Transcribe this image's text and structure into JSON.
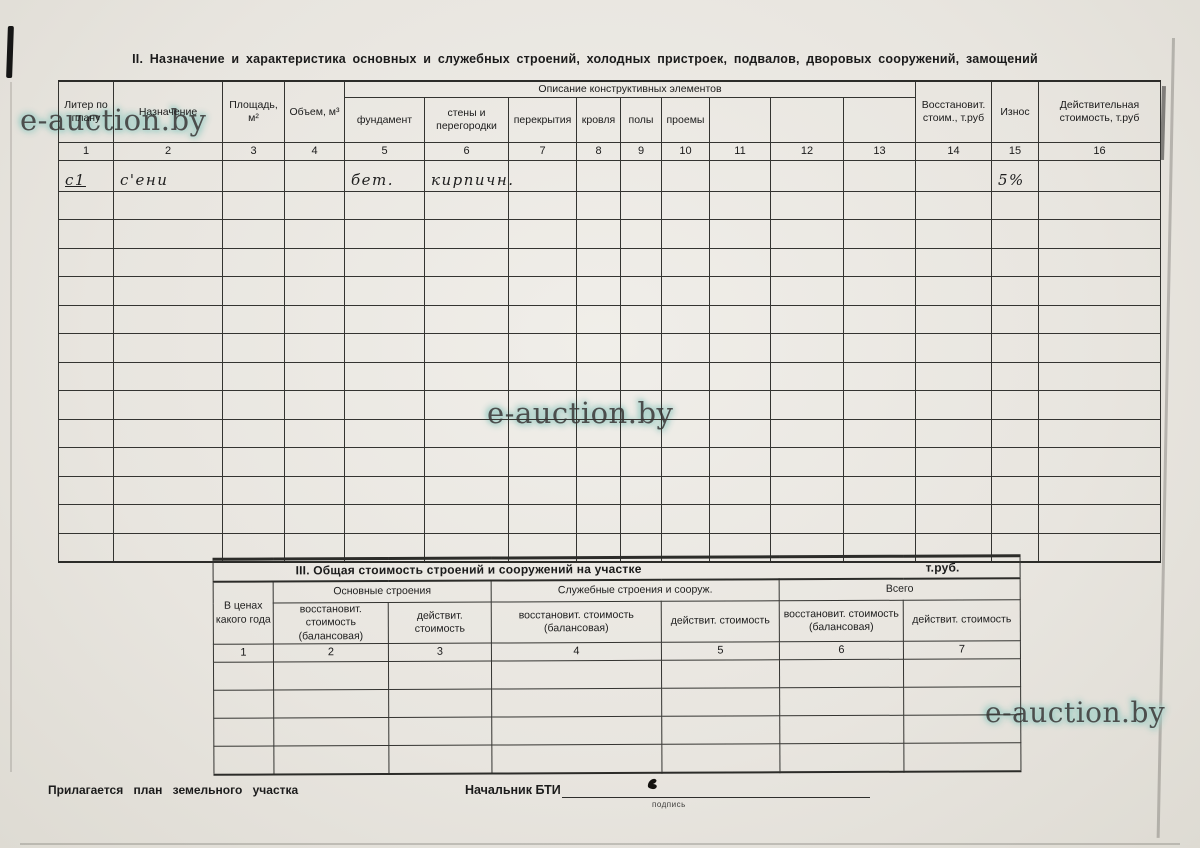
{
  "watermark": {
    "text": "e-auction.by"
  },
  "section2": {
    "title": "II. Назначение и характеристика основных и служебных строений,  холодных пристроек,  подвалов,  дворовых сооружений,  замощений",
    "header": {
      "liter": "Литер по плану",
      "naznachenie": "Назначение",
      "ploshchad": "Площадь, м²",
      "obyem": "Объем, м³",
      "group": "Описание конструктивных элементов",
      "subcolumns": [
        "фундамент",
        "стены и перегородки",
        "перекрытия",
        "кровля",
        "полы",
        "проемы",
        "",
        "",
        ""
      ],
      "vosstanovit": "Восстановит. стоим., т.руб",
      "iznos": "Износ",
      "deystvitelnaya": "Действительная стоимость, т.руб"
    },
    "column_numbers": [
      "1",
      "2",
      "3",
      "4",
      "5",
      "6",
      "7",
      "8",
      "9",
      "10",
      "11",
      "12",
      "13",
      "14",
      "15",
      "16"
    ],
    "row_count": 14,
    "entries": [
      {
        "column": 1,
        "text": "с1",
        "underline": true
      },
      {
        "column": 2,
        "text": "с'ени"
      },
      {
        "column": 5,
        "text": "бет."
      },
      {
        "column": 6,
        "text": "кирпичн."
      },
      {
        "column": 15,
        "text": "5%"
      }
    ]
  },
  "section3": {
    "title": "III. Общая стоимость строений и сооружений на участке",
    "unit": "т.руб.",
    "col_year": "В ценах какого года",
    "groups": [
      {
        "label": "Основные строения",
        "sub": [
          "восстановит. стоимость (балансовая)",
          "действит. стоимость"
        ]
      },
      {
        "label": "Служебные строения и сооруж.",
        "sub": [
          "восстановит. стоимость (балансовая)",
          "действит. стоимость"
        ]
      },
      {
        "label": "Всего",
        "sub": [
          "восстановит. стоимость (балансовая)",
          "действит. стоимость"
        ]
      }
    ],
    "column_numbers": [
      "1",
      "2",
      "3",
      "4",
      "5",
      "6",
      "7"
    ],
    "row_count": 4
  },
  "footer": {
    "attachment_note": "Прилагается план земельного участка",
    "signature_label": "Начальник БТИ",
    "signature_caption": "подпись"
  }
}
